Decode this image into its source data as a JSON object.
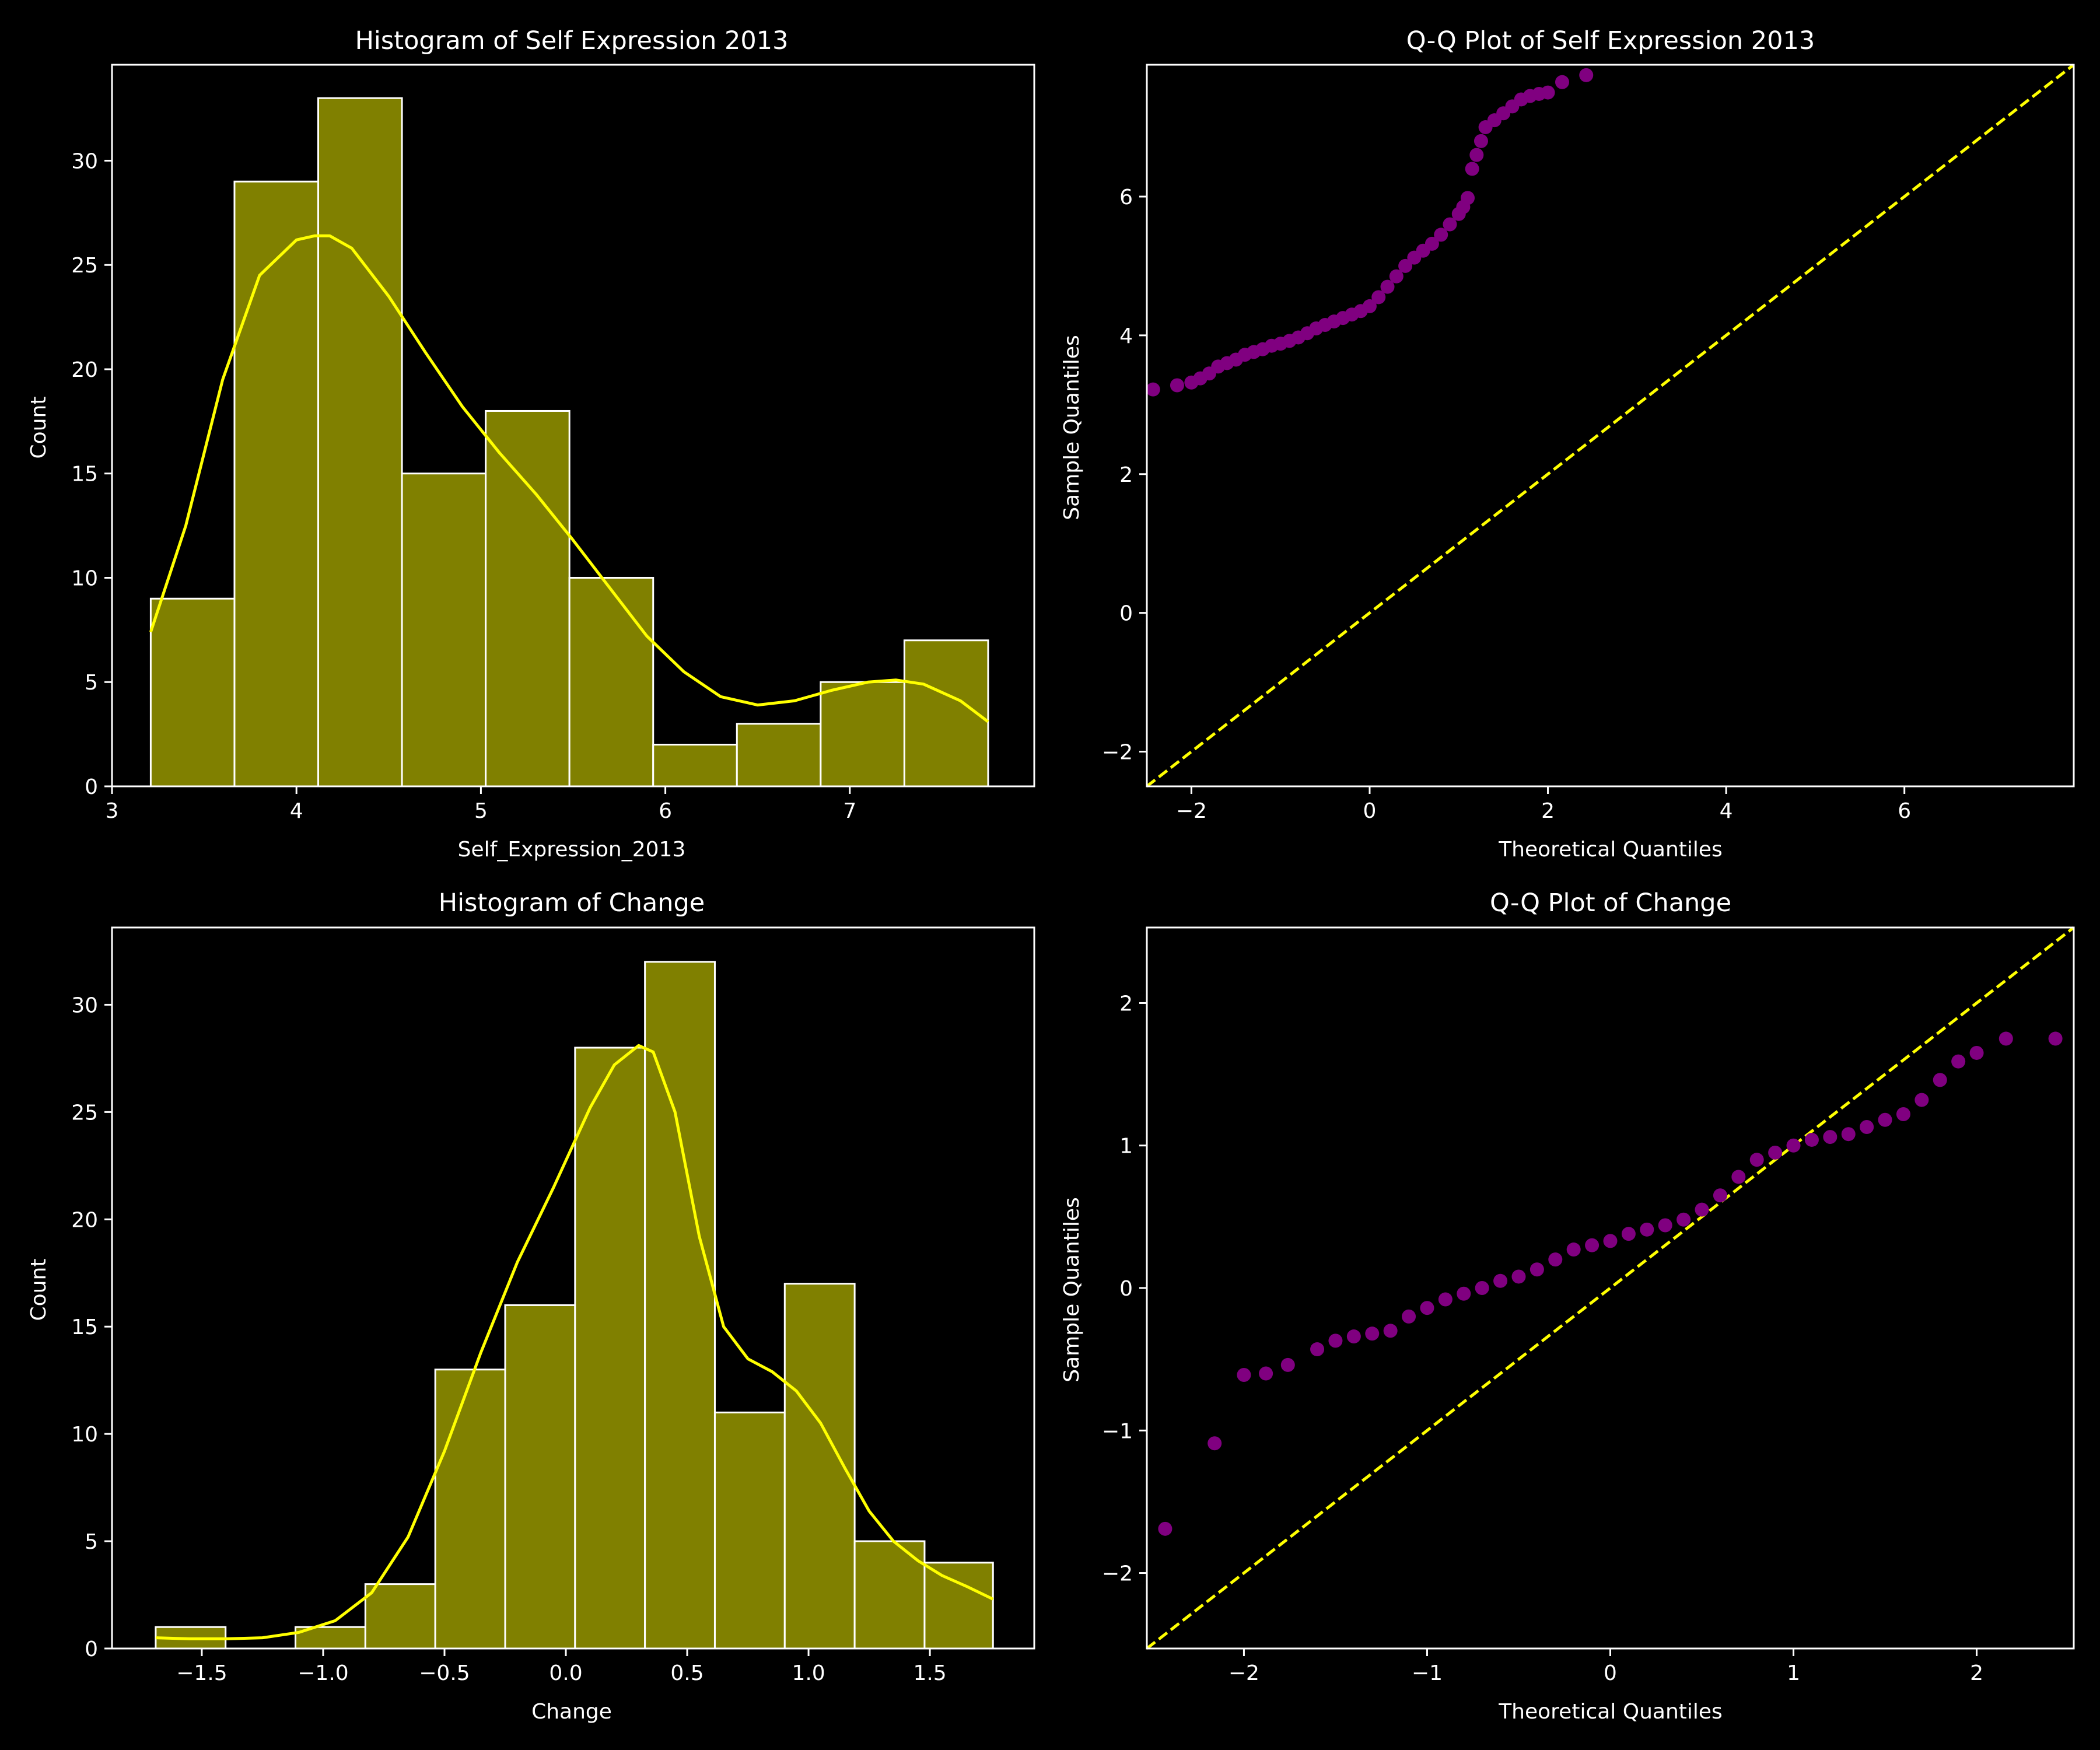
{
  "figure": {
    "background": "#000000",
    "foreground": "#ffffff"
  },
  "chart_data": [
    {
      "type": "bar",
      "id": "hist_se",
      "title": "Histogram of Self Expression 2013",
      "xlabel": "Self_Expression_2013",
      "ylabel": "Count",
      "xlim": [
        3.0,
        8.0
      ],
      "ylim": [
        0,
        34.6
      ],
      "xticks": [
        3,
        4,
        5,
        6,
        7
      ],
      "yticks": [
        0,
        5,
        10,
        15,
        20,
        25,
        30
      ],
      "bin_edges": [
        3.21,
        3.664,
        4.118,
        4.572,
        5.026,
        5.48,
        5.934,
        6.388,
        6.842,
        7.296,
        7.75
      ],
      "values": [
        9,
        29,
        33,
        15,
        18,
        10,
        2,
        3,
        5,
        7
      ],
      "bar_color": "#808000",
      "kde_color": "#ffff00",
      "kde": {
        "x": [
          3.21,
          3.4,
          3.6,
          3.8,
          4.0,
          4.1,
          4.18,
          4.3,
          4.5,
          4.7,
          4.9,
          5.1,
          5.3,
          5.5,
          5.7,
          5.9,
          6.1,
          6.3,
          6.5,
          6.7,
          6.9,
          7.1,
          7.25,
          7.4,
          7.6,
          7.75
        ],
        "y": [
          7.4,
          12.5,
          19.5,
          24.5,
          26.2,
          26.4,
          26.4,
          25.8,
          23.5,
          20.8,
          18.2,
          16.0,
          14.0,
          11.8,
          9.5,
          7.2,
          5.5,
          4.3,
          3.9,
          4.1,
          4.6,
          5.0,
          5.1,
          4.9,
          4.1,
          3.1
        ]
      },
      "grid": false
    },
    {
      "type": "scatter",
      "id": "qq_se",
      "title": "Q-Q Plot of Self Expression 2013",
      "xlabel": "Theoretical Quantiles",
      "ylabel": "Sample Quantiles",
      "xlim": [
        -2.5,
        7.9
      ],
      "ylim": [
        -2.5,
        7.9
      ],
      "xticks": [
        -2,
        0,
        2,
        4,
        6
      ],
      "yticks": [
        -2,
        0,
        2,
        4,
        6
      ],
      "point_color": "#800080",
      "line_color": "#ffff00",
      "reference_line": "y = x",
      "theoretical": [
        -2.43,
        -2.16,
        -2.0,
        -1.9,
        -1.8,
        -1.7,
        -1.6,
        -1.5,
        -1.4,
        -1.3,
        -1.2,
        -1.1,
        -1.0,
        -0.9,
        -0.8,
        -0.7,
        -0.6,
        -0.5,
        -0.4,
        -0.3,
        -0.2,
        -0.1,
        0.0,
        0.1,
        0.2,
        0.3,
        0.4,
        0.5,
        0.6,
        0.7,
        0.8,
        0.9,
        1.0,
        1.05,
        1.1,
        1.15,
        1.2,
        1.25,
        1.3,
        1.4,
        1.5,
        1.6,
        1.7,
        1.8,
        1.9,
        2.0,
        2.16,
        2.43
      ],
      "sample": [
        3.22,
        3.28,
        3.32,
        3.38,
        3.45,
        3.55,
        3.6,
        3.65,
        3.72,
        3.76,
        3.8,
        3.85,
        3.88,
        3.92,
        3.97,
        4.03,
        4.1,
        4.15,
        4.2,
        4.25,
        4.3,
        4.35,
        4.42,
        4.55,
        4.7,
        4.85,
        5.0,
        5.12,
        5.22,
        5.32,
        5.45,
        5.6,
        5.75,
        5.85,
        5.98,
        6.4,
        6.6,
        6.8,
        7.0,
        7.1,
        7.2,
        7.3,
        7.4,
        7.45,
        7.48,
        7.5,
        7.65,
        7.75
      ]
    },
    {
      "type": "bar",
      "id": "hist_change",
      "title": "Histogram of Change",
      "xlabel": "Change",
      "ylabel": "Count",
      "xlim": [
        -1.87,
        1.93
      ],
      "ylim": [
        0,
        33.6
      ],
      "xticks": [
        -1.5,
        -1.0,
        -0.5,
        0.0,
        0.5,
        1.0,
        1.5
      ],
      "xtick_labels": [
        "−1.5",
        "−1.0",
        "−0.5",
        "0.0",
        "0.5",
        "1.0",
        "1.5"
      ],
      "yticks": [
        0,
        5,
        10,
        15,
        20,
        25,
        30
      ],
      "bin_edges": [
        -1.69,
        -1.402,
        -1.114,
        -0.826,
        -0.538,
        -0.25,
        0.038,
        0.326,
        0.614,
        0.902,
        1.19,
        1.478,
        1.76
      ],
      "values": [
        1,
        0,
        1,
        3,
        13,
        16,
        28,
        32,
        11,
        17,
        5,
        4
      ],
      "bar_color": "#808000",
      "kde_color": "#ffff00",
      "kde": {
        "x": [
          -1.69,
          -1.55,
          -1.4,
          -1.25,
          -1.1,
          -0.95,
          -0.8,
          -0.65,
          -0.5,
          -0.35,
          -0.2,
          -0.05,
          0.1,
          0.2,
          0.3,
          0.36,
          0.45,
          0.55,
          0.65,
          0.75,
          0.85,
          0.95,
          1.05,
          1.15,
          1.25,
          1.35,
          1.45,
          1.55,
          1.65,
          1.76
        ],
        "y": [
          0.5,
          0.45,
          0.45,
          0.5,
          0.75,
          1.3,
          2.6,
          5.2,
          9.2,
          13.8,
          18.0,
          21.5,
          25.2,
          27.2,
          28.1,
          27.8,
          25.0,
          19.2,
          15.0,
          13.5,
          12.9,
          12.0,
          10.5,
          8.4,
          6.4,
          5.0,
          4.1,
          3.4,
          2.9,
          2.3
        ]
      },
      "grid": false
    },
    {
      "type": "scatter",
      "id": "qq_change",
      "title": "Q-Q Plot of Change",
      "xlabel": "Theoretical Quantiles",
      "ylabel": "Sample Quantiles",
      "xlim": [
        -2.53,
        2.53
      ],
      "ylim": [
        -2.53,
        2.53
      ],
      "xticks": [
        -2,
        -1,
        0,
        1,
        2
      ],
      "xtick_labels": [
        "−2",
        "−1",
        "0",
        "1",
        "2"
      ],
      "yticks": [
        -2,
        -1,
        0,
        1,
        2
      ],
      "ytick_labels": [
        "−2",
        "−1",
        "0",
        "1",
        "2"
      ],
      "point_color": "#800080",
      "line_color": "#ffff00",
      "reference_line": "y = x",
      "theoretical": [
        -2.43,
        -2.16,
        -2.0,
        -1.88,
        -1.76,
        -1.6,
        -1.5,
        -1.4,
        -1.3,
        -1.2,
        -1.1,
        -1.0,
        -0.9,
        -0.8,
        -0.7,
        -0.6,
        -0.5,
        -0.4,
        -0.3,
        -0.2,
        -0.1,
        0.0,
        0.1,
        0.2,
        0.3,
        0.4,
        0.5,
        0.6,
        0.7,
        0.8,
        0.9,
        1.0,
        1.1,
        1.2,
        1.3,
        1.4,
        1.5,
        1.6,
        1.7,
        1.8,
        1.9,
        2.0,
        2.16,
        2.43
      ],
      "sample": [
        -1.69,
        -1.09,
        -0.61,
        -0.6,
        -0.54,
        -0.43,
        -0.37,
        -0.34,
        -0.32,
        -0.3,
        -0.2,
        -0.14,
        -0.08,
        -0.04,
        0.0,
        0.05,
        0.08,
        0.13,
        0.2,
        0.27,
        0.3,
        0.33,
        0.38,
        0.41,
        0.44,
        0.48,
        0.55,
        0.65,
        0.78,
        0.9,
        0.95,
        1.0,
        1.04,
        1.06,
        1.08,
        1.13,
        1.18,
        1.22,
        1.32,
        1.46,
        1.59,
        1.65,
        1.75,
        1.75
      ]
    }
  ]
}
